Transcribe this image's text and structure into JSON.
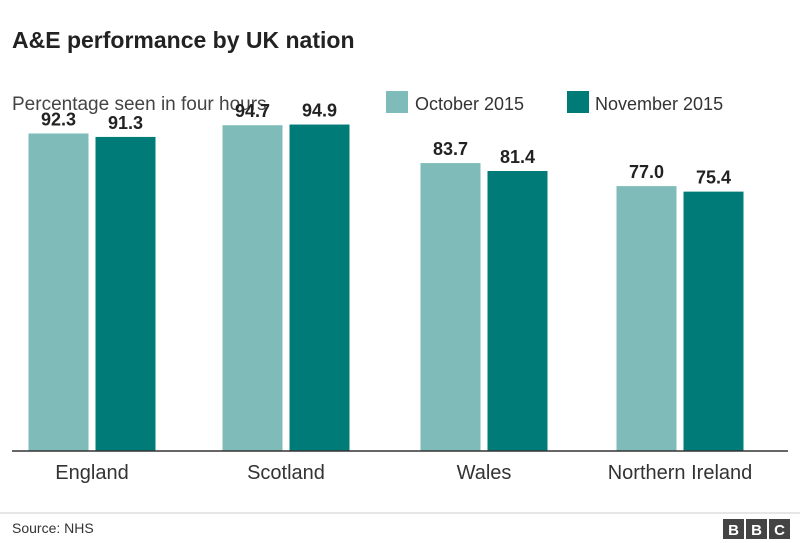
{
  "chart_data": {
    "type": "bar",
    "title": "A&E performance by UK nation",
    "subtitle": "Percentage seen in four hours",
    "categories": [
      "England",
      "Scotland",
      "Wales",
      "Northern Ireland"
    ],
    "series": [
      {
        "name": "October 2015",
        "color": "#7fbbb8",
        "values": [
          92.3,
          94.7,
          83.7,
          77.0
        ]
      },
      {
        "name": "November 2015",
        "color": "#007b78",
        "values": [
          91.3,
          94.9,
          81.4,
          75.4
        ]
      }
    ],
    "value_labels": [
      [
        "92.3",
        "94.7",
        "83.7",
        "77.0"
      ],
      [
        "91.3",
        "94.9",
        "81.4",
        "75.4"
      ]
    ],
    "ylim": [
      0,
      100
    ],
    "xlabel": "",
    "ylabel": "",
    "grid": false,
    "legend": "top-right"
  },
  "footer": {
    "source": "Source: NHS",
    "logo_letters": [
      "B",
      "B",
      "C"
    ]
  }
}
